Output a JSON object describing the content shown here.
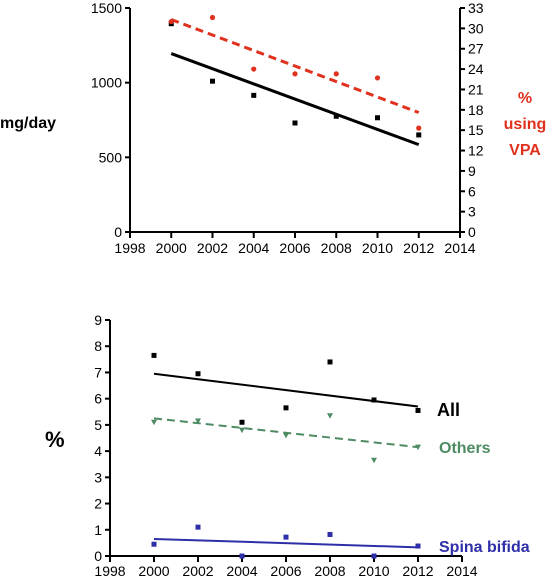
{
  "chart_data": [
    {
      "type": "scatter",
      "title": "",
      "xlim": [
        1998,
        2014
      ],
      "x_ticks": [
        "1998",
        "2000",
        "2002",
        "2004",
        "2006",
        "2008",
        "2010",
        "2012",
        "2014"
      ],
      "ylabel_left": "mg/day",
      "ylim_left": [
        0,
        1500
      ],
      "y_ticks_left": [
        "0",
        "500",
        "1000",
        "1500"
      ],
      "ylabel_right": [
        "%",
        "using",
        "VPA"
      ],
      "ylim_right": [
        0,
        33
      ],
      "y_ticks_right": [
        "0",
        "3",
        "6",
        "9",
        "12",
        "15",
        "18",
        "21",
        "24",
        "27",
        "30",
        "33"
      ],
      "grid": false,
      "series": [
        {
          "axis": "left",
          "color": "#000000",
          "marker": "square",
          "x": [
            2000,
            2002,
            2004,
            2006,
            2008,
            2010,
            2012
          ],
          "y": [
            1395,
            1010,
            915,
            730,
            775,
            765,
            650
          ],
          "trend": {
            "x": [
              2000,
              2012
            ],
            "y": [
              1195,
              585
            ],
            "dash": false
          }
        },
        {
          "axis": "right",
          "color": "#e0301e",
          "marker": "circle",
          "x": [
            2000,
            2002,
            2004,
            2006,
            2008,
            2010,
            2012
          ],
          "y": [
            31.0,
            31.6,
            24.0,
            23.3,
            23.3,
            22.7,
            15.3
          ],
          "trend": {
            "x": [
              2000,
              2012
            ],
            "y": [
              31.3,
              17.6
            ],
            "dash": true
          }
        }
      ]
    },
    {
      "type": "scatter",
      "title": "",
      "xlim": [
        1998,
        2014
      ],
      "x_ticks": [
        "1998",
        "2000",
        "2002",
        "2004",
        "2006",
        "2008",
        "2010",
        "2012",
        "2014"
      ],
      "ylabel": "%",
      "ylim": [
        0,
        9
      ],
      "y_ticks": [
        "0",
        "1",
        "2",
        "3",
        "4",
        "5",
        "6",
        "7",
        "8",
        "9"
      ],
      "grid": false,
      "series": [
        {
          "name": "All",
          "color": "#000000",
          "marker": "square",
          "x": [
            2000,
            2002,
            2004,
            2006,
            2008,
            2010,
            2012
          ],
          "y": [
            7.65,
            6.95,
            5.1,
            5.65,
            7.4,
            5.95,
            5.55
          ],
          "trend": {
            "x": [
              2000,
              2012
            ],
            "y": [
              6.95,
              5.7
            ],
            "dash": false
          }
        },
        {
          "name": "Others",
          "color": "#4e8b63",
          "marker": "triangle-down",
          "x": [
            2000,
            2002,
            2004,
            2006,
            2008,
            2010,
            2012
          ],
          "y": [
            5.1,
            5.15,
            4.8,
            4.6,
            5.35,
            3.65,
            4.15
          ],
          "trend": {
            "x": [
              2000,
              2012
            ],
            "y": [
              5.25,
              4.15
            ],
            "dash": true
          }
        },
        {
          "name": "Spina bifida",
          "color": "#2e2ea8",
          "marker": "square",
          "x": [
            2000,
            2002,
            2004,
            2006,
            2008,
            2010,
            2012
          ],
          "y": [
            0.45,
            1.1,
            0.0,
            0.72,
            0.82,
            0.0,
            0.38
          ],
          "trend": {
            "x": [
              2000,
              2012
            ],
            "y": [
              0.65,
              0.33
            ],
            "dash": false
          }
        }
      ]
    }
  ]
}
